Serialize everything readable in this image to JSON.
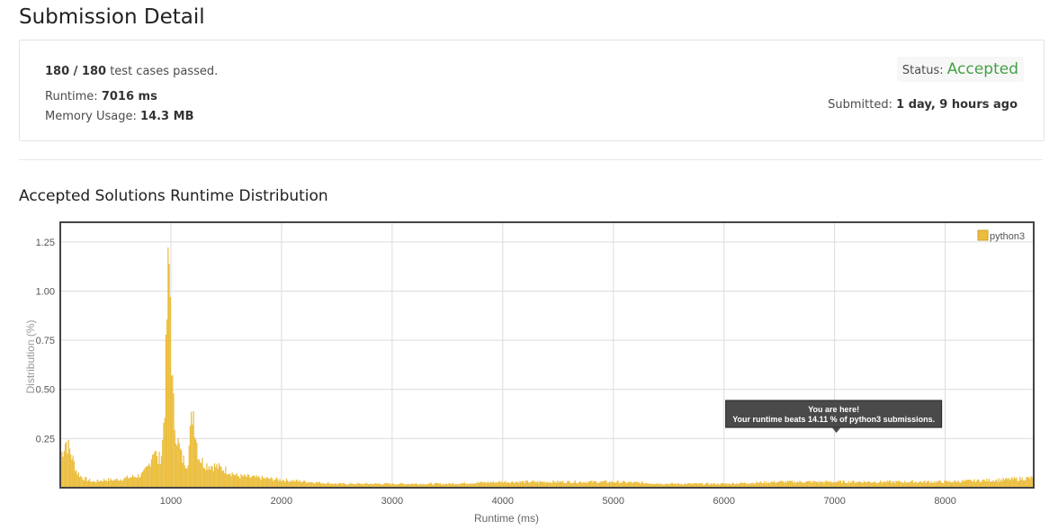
{
  "page": {
    "title": "Submission Detail"
  },
  "summary": {
    "cases_passed": "180 / 180",
    "cases_label": " test cases passed.",
    "runtime_label": "Runtime: ",
    "runtime_value": "7016 ms",
    "memory_label": "Memory Usage: ",
    "memory_value": "14.3 MB",
    "status_label": "Status: ",
    "status_value": "Accepted",
    "submitted_label": "Submitted: ",
    "submitted_value": "1 day, 9 hours ago"
  },
  "colors": {
    "accepted": "#43a047",
    "bar": "#ebbd3b",
    "tooltip_bg": "#4a4a4a"
  },
  "distribution": {
    "section_title": "Accepted Solutions Runtime Distribution"
  },
  "chart_data": {
    "type": "bar",
    "xlabel": "Runtime (ms)",
    "ylabel": "Distribution (%)",
    "xlim": [
      0,
      8800
    ],
    "ylim": [
      0,
      1.35
    ],
    "x_ticks": [
      1000,
      2000,
      3000,
      4000,
      5000,
      6000,
      7000,
      8000
    ],
    "x_tick_labels": [
      "1000",
      "2000",
      "3000",
      "4000",
      "5000",
      "6000",
      "7000",
      "8000"
    ],
    "y_ticks": [
      0.25,
      0.5,
      0.75,
      1.0,
      1.25
    ],
    "y_tick_labels": [
      "0.25",
      "0.50",
      "0.75",
      "1.00",
      "1.25"
    ],
    "grid": true,
    "legend": "top-right",
    "series": [
      {
        "name": "python3",
        "color": "#ebbd3b",
        "x": [
          0,
          50,
          100,
          150,
          200,
          300,
          400,
          500,
          600,
          700,
          750,
          800,
          850,
          880,
          920,
          950,
          970,
          990,
          1000,
          1010,
          1030,
          1060,
          1100,
          1150,
          1180,
          1200,
          1220,
          1250,
          1300,
          1400,
          1500,
          1600,
          1800,
          2000,
          2500,
          3000,
          3500,
          4000,
          4500,
          5000,
          5500,
          6000,
          6500,
          7000,
          7500,
          8000,
          8500,
          8800
        ],
        "values": [
          0.15,
          0.24,
          0.17,
          0.08,
          0.05,
          0.03,
          0.04,
          0.04,
          0.05,
          0.06,
          0.07,
          0.11,
          0.21,
          0.13,
          0.18,
          0.5,
          1.0,
          1.12,
          0.85,
          0.55,
          0.35,
          0.24,
          0.15,
          0.12,
          0.3,
          0.42,
          0.3,
          0.16,
          0.12,
          0.11,
          0.09,
          0.06,
          0.05,
          0.04,
          0.02,
          0.02,
          0.02,
          0.03,
          0.03,
          0.03,
          0.02,
          0.02,
          0.03,
          0.03,
          0.03,
          0.03,
          0.04,
          0.05
        ]
      }
    ],
    "annotation": {
      "x": 7016,
      "line1": "You are here!",
      "line2": "Your runtime beats 14.11 % of python3 submissions."
    }
  }
}
